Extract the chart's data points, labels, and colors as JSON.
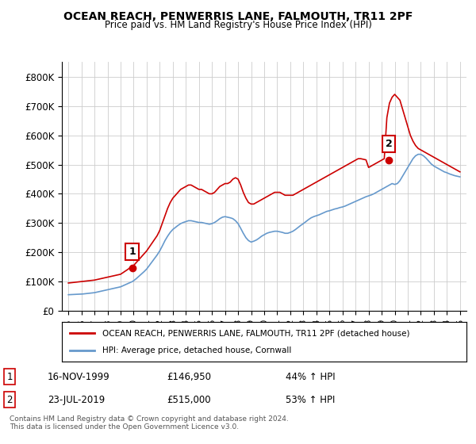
{
  "title": "OCEAN REACH, PENWERRIS LANE, FALMOUTH, TR11 2PF",
  "subtitle": "Price paid vs. HM Land Registry's House Price Index (HPI)",
  "legend_line1": "OCEAN REACH, PENWERRIS LANE, FALMOUTH, TR11 2PF (detached house)",
  "legend_line2": "HPI: Average price, detached house, Cornwall",
  "footnote": "Contains HM Land Registry data © Crown copyright and database right 2024.\nThis data is licensed under the Open Government Licence v3.0.",
  "sale1_label": "1",
  "sale1_date": "16-NOV-1999",
  "sale1_price": "£146,950",
  "sale1_hpi": "44% ↑ HPI",
  "sale2_label": "2",
  "sale2_date": "23-JUL-2019",
  "sale2_price": "£515,000",
  "sale2_hpi": "53% ↑ HPI",
  "property_color": "#cc0000",
  "hpi_color": "#6699cc",
  "background_color": "#ffffff",
  "grid_color": "#cccccc",
  "ylim": [
    0,
    850000
  ],
  "yticks": [
    0,
    100000,
    200000,
    300000,
    400000,
    500000,
    600000,
    700000,
    800000
  ],
  "xlim_start": 1994.5,
  "xlim_end": 2025.5,
  "property_years": [
    1995.0,
    1995.1,
    1995.2,
    1995.3,
    1995.4,
    1995.5,
    1995.6,
    1995.7,
    1995.8,
    1995.9,
    1996.0,
    1996.1,
    1996.2,
    1996.3,
    1996.4,
    1996.5,
    1996.6,
    1996.7,
    1996.8,
    1996.9,
    1997.0,
    1997.1,
    1997.2,
    1997.3,
    1997.4,
    1997.5,
    1997.6,
    1997.7,
    1997.8,
    1997.9,
    1998.0,
    1998.1,
    1998.2,
    1998.3,
    1998.4,
    1998.5,
    1998.6,
    1998.7,
    1998.8,
    1998.9,
    1999.0,
    1999.1,
    1999.2,
    1999.3,
    1999.4,
    1999.5,
    1999.6,
    1999.7,
    1999.8,
    1999.9,
    2000.0,
    2000.2,
    2000.4,
    2000.6,
    2000.8,
    2001.0,
    2001.2,
    2001.4,
    2001.6,
    2001.8,
    2002.0,
    2002.2,
    2002.4,
    2002.6,
    2002.8,
    2003.0,
    2003.2,
    2003.4,
    2003.6,
    2003.8,
    2004.0,
    2004.2,
    2004.4,
    2004.6,
    2004.8,
    2005.0,
    2005.2,
    2005.4,
    2005.6,
    2005.8,
    2006.0,
    2006.2,
    2006.4,
    2006.6,
    2006.8,
    2007.0,
    2007.2,
    2007.4,
    2007.6,
    2007.8,
    2008.0,
    2008.2,
    2008.4,
    2008.6,
    2008.8,
    2009.0,
    2009.2,
    2009.4,
    2009.6,
    2009.8,
    2010.0,
    2010.2,
    2010.4,
    2010.6,
    2010.8,
    2011.0,
    2011.2,
    2011.4,
    2011.6,
    2011.8,
    2012.0,
    2012.2,
    2012.4,
    2012.6,
    2012.8,
    2013.0,
    2013.2,
    2013.4,
    2013.6,
    2013.8,
    2014.0,
    2014.2,
    2014.4,
    2014.6,
    2014.8,
    2015.0,
    2015.2,
    2015.4,
    2015.6,
    2015.8,
    2016.0,
    2016.2,
    2016.4,
    2016.6,
    2016.8,
    2017.0,
    2017.2,
    2017.4,
    2017.6,
    2017.8,
    2018.0,
    2018.2,
    2018.4,
    2018.6,
    2018.8,
    2019.0,
    2019.2,
    2019.4,
    2019.6,
    2019.8,
    2020.0,
    2020.2,
    2020.4,
    2020.6,
    2020.8,
    2021.0,
    2021.2,
    2021.4,
    2021.6,
    2021.8,
    2022.0,
    2022.2,
    2022.4,
    2022.6,
    2022.8,
    2023.0,
    2023.2,
    2023.4,
    2023.6,
    2023.8,
    2024.0,
    2024.2,
    2024.4,
    2024.6,
    2024.8,
    2025.0
  ],
  "property_values": [
    95000,
    95500,
    96000,
    96500,
    97000,
    97500,
    98000,
    98500,
    99000,
    99500,
    100000,
    100500,
    101000,
    101500,
    102000,
    102500,
    103000,
    103500,
    104000,
    104500,
    105000,
    106000,
    107000,
    108000,
    109000,
    110000,
    111000,
    112000,
    113000,
    114000,
    115000,
    116000,
    117000,
    118000,
    119000,
    120000,
    121000,
    122000,
    123000,
    124000,
    125000,
    128000,
    131000,
    134000,
    137000,
    140000,
    143000,
    146950,
    149000,
    151000,
    155000,
    165000,
    175000,
    185000,
    195000,
    205000,
    218000,
    231000,
    244000,
    257000,
    275000,
    300000,
    325000,
    350000,
    370000,
    385000,
    395000,
    405000,
    415000,
    420000,
    425000,
    430000,
    430000,
    425000,
    420000,
    415000,
    415000,
    410000,
    405000,
    400000,
    400000,
    405000,
    415000,
    425000,
    430000,
    435000,
    435000,
    440000,
    450000,
    455000,
    450000,
    430000,
    405000,
    385000,
    370000,
    365000,
    365000,
    370000,
    375000,
    380000,
    385000,
    390000,
    395000,
    400000,
    405000,
    405000,
    405000,
    400000,
    395000,
    395000,
    395000,
    395000,
    400000,
    405000,
    410000,
    415000,
    420000,
    425000,
    430000,
    435000,
    440000,
    445000,
    450000,
    455000,
    460000,
    465000,
    470000,
    475000,
    480000,
    485000,
    490000,
    495000,
    500000,
    505000,
    510000,
    515000,
    520000,
    520000,
    518000,
    516000,
    490000,
    495000,
    500000,
    505000,
    510000,
    515000,
    520000,
    660000,
    710000,
    730000,
    740000,
    730000,
    720000,
    690000,
    660000,
    630000,
    600000,
    580000,
    565000,
    555000,
    550000,
    545000,
    540000,
    535000,
    530000,
    525000,
    520000,
    515000,
    510000,
    505000,
    500000,
    495000,
    490000,
    485000,
    480000,
    475000
  ],
  "hpi_years": [
    1995.0,
    1995.1,
    1995.2,
    1995.3,
    1995.4,
    1995.5,
    1995.6,
    1995.7,
    1995.8,
    1995.9,
    1996.0,
    1996.1,
    1996.2,
    1996.3,
    1996.4,
    1996.5,
    1996.6,
    1996.7,
    1996.8,
    1996.9,
    1997.0,
    1997.1,
    1997.2,
    1997.3,
    1997.4,
    1997.5,
    1997.6,
    1997.7,
    1997.8,
    1997.9,
    1998.0,
    1998.1,
    1998.2,
    1998.3,
    1998.4,
    1998.5,
    1998.6,
    1998.7,
    1998.8,
    1998.9,
    1999.0,
    1999.1,
    1999.2,
    1999.3,
    1999.4,
    1999.5,
    1999.6,
    1999.7,
    1999.8,
    1999.9,
    2000.0,
    2000.2,
    2000.4,
    2000.6,
    2000.8,
    2001.0,
    2001.2,
    2001.4,
    2001.6,
    2001.8,
    2002.0,
    2002.2,
    2002.4,
    2002.6,
    2002.8,
    2003.0,
    2003.2,
    2003.4,
    2003.6,
    2003.8,
    2004.0,
    2004.2,
    2004.4,
    2004.6,
    2004.8,
    2005.0,
    2005.2,
    2005.4,
    2005.6,
    2005.8,
    2006.0,
    2006.2,
    2006.4,
    2006.6,
    2006.8,
    2007.0,
    2007.2,
    2007.4,
    2007.6,
    2007.8,
    2008.0,
    2008.2,
    2008.4,
    2008.6,
    2008.8,
    2009.0,
    2009.2,
    2009.4,
    2009.6,
    2009.8,
    2010.0,
    2010.2,
    2010.4,
    2010.6,
    2010.8,
    2011.0,
    2011.2,
    2011.4,
    2011.6,
    2011.8,
    2012.0,
    2012.2,
    2012.4,
    2012.6,
    2012.8,
    2013.0,
    2013.2,
    2013.4,
    2013.6,
    2013.8,
    2014.0,
    2014.2,
    2014.4,
    2014.6,
    2014.8,
    2015.0,
    2015.2,
    2015.4,
    2015.6,
    2015.8,
    2016.0,
    2016.2,
    2016.4,
    2016.6,
    2016.8,
    2017.0,
    2017.2,
    2017.4,
    2017.6,
    2017.8,
    2018.0,
    2018.2,
    2018.4,
    2018.6,
    2018.8,
    2019.0,
    2019.2,
    2019.4,
    2019.6,
    2019.8,
    2020.0,
    2020.2,
    2020.4,
    2020.6,
    2020.8,
    2021.0,
    2021.2,
    2021.4,
    2021.6,
    2021.8,
    2022.0,
    2022.2,
    2022.4,
    2022.6,
    2022.8,
    2023.0,
    2023.2,
    2023.4,
    2023.6,
    2023.8,
    2024.0,
    2024.2,
    2024.4,
    2024.6,
    2024.8,
    2025.0
  ],
  "hpi_values": [
    55000,
    55200,
    55400,
    55600,
    55800,
    56000,
    56200,
    56400,
    56600,
    56800,
    57000,
    57500,
    58000,
    58500,
    59000,
    59500,
    60000,
    60500,
    61000,
    61500,
    62000,
    63000,
    64000,
    65000,
    66000,
    67000,
    68000,
    69000,
    70000,
    71000,
    72000,
    73000,
    74000,
    75000,
    76000,
    77000,
    78000,
    79000,
    80000,
    81000,
    82000,
    84000,
    86000,
    88000,
    90000,
    92000,
    94000,
    96000,
    98000,
    100000,
    103000,
    110000,
    118000,
    126000,
    134000,
    143000,
    155000,
    167000,
    179000,
    191000,
    205000,
    222000,
    240000,
    255000,
    268000,
    278000,
    285000,
    292000,
    298000,
    302000,
    305000,
    308000,
    308000,
    306000,
    304000,
    302000,
    302000,
    300000,
    298000,
    296000,
    298000,
    302000,
    308000,
    315000,
    320000,
    322000,
    320000,
    318000,
    315000,
    308000,
    298000,
    282000,
    265000,
    250000,
    240000,
    235000,
    238000,
    242000,
    248000,
    255000,
    260000,
    265000,
    268000,
    270000,
    272000,
    272000,
    270000,
    268000,
    265000,
    265000,
    268000,
    272000,
    278000,
    285000,
    292000,
    298000,
    305000,
    312000,
    318000,
    322000,
    325000,
    328000,
    332000,
    336000,
    340000,
    342000,
    345000,
    348000,
    350000,
    353000,
    355000,
    358000,
    362000,
    366000,
    370000,
    374000,
    378000,
    382000,
    386000,
    390000,
    393000,
    396000,
    400000,
    405000,
    410000,
    415000,
    420000,
    425000,
    430000,
    435000,
    432000,
    435000,
    445000,
    460000,
    475000,
    490000,
    505000,
    520000,
    530000,
    535000,
    535000,
    530000,
    522000,
    512000,
    502000,
    495000,
    490000,
    485000,
    480000,
    475000,
    472000,
    468000,
    465000,
    462000,
    460000,
    458000
  ],
  "sale1_x": 1999.88,
  "sale1_y": 146950,
  "sale2_x": 2019.55,
  "sale2_y": 515000,
  "marker1_x": 1999.88,
  "marker1_y": 146950,
  "marker2_x": 2019.55,
  "marker2_y": 515000
}
